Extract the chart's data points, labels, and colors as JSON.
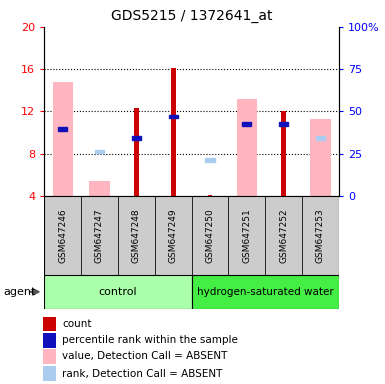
{
  "title": "GDS5215 / 1372641_at",
  "samples": [
    "GSM647246",
    "GSM647247",
    "GSM647248",
    "GSM647249",
    "GSM647250",
    "GSM647251",
    "GSM647252",
    "GSM647253"
  ],
  "ylim_left": [
    4,
    20
  ],
  "ylim_right": [
    0,
    100
  ],
  "yticks_left": [
    4,
    8,
    12,
    16,
    20
  ],
  "yticks_right": [
    0,
    25,
    50,
    75,
    100
  ],
  "ytick_labels_right": [
    "0",
    "25",
    "50",
    "75",
    "100%"
  ],
  "red_bars": [
    null,
    null,
    12.3,
    16.1,
    4.1,
    null,
    12.0,
    null
  ],
  "blue_squares": [
    10.3,
    null,
    9.5,
    11.5,
    null,
    10.8,
    10.8,
    null
  ],
  "pink_bars": [
    14.8,
    5.4,
    null,
    null,
    null,
    13.2,
    null,
    11.3
  ],
  "light_blue_squares": [
    null,
    8.2,
    null,
    null,
    7.4,
    null,
    null,
    9.5
  ],
  "red_bar_color": "#CC0000",
  "blue_square_color": "#1111BB",
  "pink_bar_color": "#FFB6C1",
  "light_blue_square_color": "#AACCEE",
  "bar_bottom": 4.0,
  "control_color": "#AAFFAA",
  "hydrogen_color": "#44EE44",
  "legend": [
    {
      "color": "#CC0000",
      "label": "count"
    },
    {
      "color": "#1111BB",
      "label": "percentile rank within the sample"
    },
    {
      "color": "#FFB6C1",
      "label": "value, Detection Call = ABSENT"
    },
    {
      "color": "#AACCEE",
      "label": "rank, Detection Call = ABSENT"
    }
  ]
}
